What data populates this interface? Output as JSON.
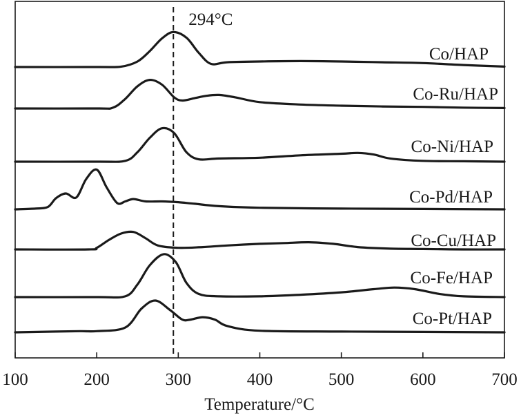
{
  "chart_data": {
    "type": "line",
    "xlabel": "Temperature/°C",
    "ylabel": "",
    "xlim": [
      100,
      700
    ],
    "xticks": [
      100,
      200,
      300,
      400,
      500,
      600,
      700
    ],
    "grid": false,
    "legend": "none",
    "annotation": {
      "text": "294°C",
      "x": 294
    },
    "series": [
      {
        "name": "Co/HAP",
        "x": [
          100,
          200,
          230,
          250,
          265,
          280,
          294,
          310,
          325,
          340,
          360,
          400,
          450,
          500,
          550,
          600,
          650,
          700
        ],
        "y": [
          0,
          0,
          0.5,
          7,
          20,
          36,
          44,
          37,
          18,
          4,
          6,
          7,
          7.5,
          7,
          6,
          5,
          2.5,
          0.5
        ]
      },
      {
        "name": "Co-Ru/HAP",
        "x": [
          100,
          200,
          220,
          235,
          250,
          265,
          280,
          295,
          305,
          320,
          335,
          350,
          370,
          400,
          450,
          500,
          550,
          600,
          650,
          700
        ],
        "y": [
          0,
          0,
          1,
          12,
          28,
          36,
          30,
          14,
          10,
          13,
          16,
          17,
          14,
          8,
          5,
          3.5,
          2.5,
          2,
          1,
          0.5
        ]
      },
      {
        "name": "Co-Ni/HAP",
        "x": [
          100,
          200,
          235,
          250,
          265,
          280,
          295,
          310,
          325,
          350,
          400,
          450,
          500,
          520,
          540,
          560,
          600,
          650,
          700
        ],
        "y": [
          0,
          0,
          1,
          12,
          30,
          42,
          36,
          12,
          3,
          4,
          5,
          8,
          10,
          11,
          9,
          4,
          1,
          0.5,
          0
        ]
      },
      {
        "name": "Co-Pd/HAP",
        "x": [
          100,
          125,
          140,
          150,
          162,
          175,
          187,
          200,
          212,
          225,
          235,
          245,
          260,
          280,
          300,
          320,
          350,
          400,
          500,
          600,
          700
        ],
        "y": [
          0,
          1,
          3,
          14,
          20,
          15,
          38,
          50,
          28,
          8,
          10,
          13,
          10,
          10,
          9,
          7,
          4,
          2,
          1,
          0.5,
          0
        ]
      },
      {
        "name": "Co-Cu/HAP",
        "x": [
          100,
          190,
          200,
          215,
          230,
          245,
          260,
          275,
          300,
          330,
          360,
          400,
          430,
          460,
          490,
          520,
          560,
          600,
          650,
          700
        ],
        "y": [
          0,
          0,
          2,
          12,
          20,
          22,
          14,
          5,
          2,
          3,
          5,
          7,
          8,
          9,
          7,
          3,
          1,
          0.5,
          0,
          0
        ]
      },
      {
        "name": "Co-Fe/HAP",
        "x": [
          100,
          200,
          235,
          250,
          265,
          282,
          297,
          310,
          325,
          350,
          400,
          450,
          500,
          540,
          565,
          590,
          620,
          650,
          700
        ],
        "y": [
          0,
          0,
          1,
          16,
          40,
          54,
          44,
          18,
          4,
          1,
          1,
          3,
          6,
          10,
          12,
          10,
          4,
          1,
          0
        ]
      },
      {
        "name": "Co-Pt/HAP",
        "x": [
          100,
          150,
          180,
          200,
          235,
          255,
          272,
          290,
          305,
          315,
          330,
          345,
          360,
          400,
          500,
          600,
          700
        ],
        "y": [
          0,
          1,
          1.5,
          1.5,
          6,
          30,
          40,
          28,
          16,
          16,
          19,
          16,
          8,
          2,
          1,
          0.5,
          0
        ]
      }
    ]
  }
}
